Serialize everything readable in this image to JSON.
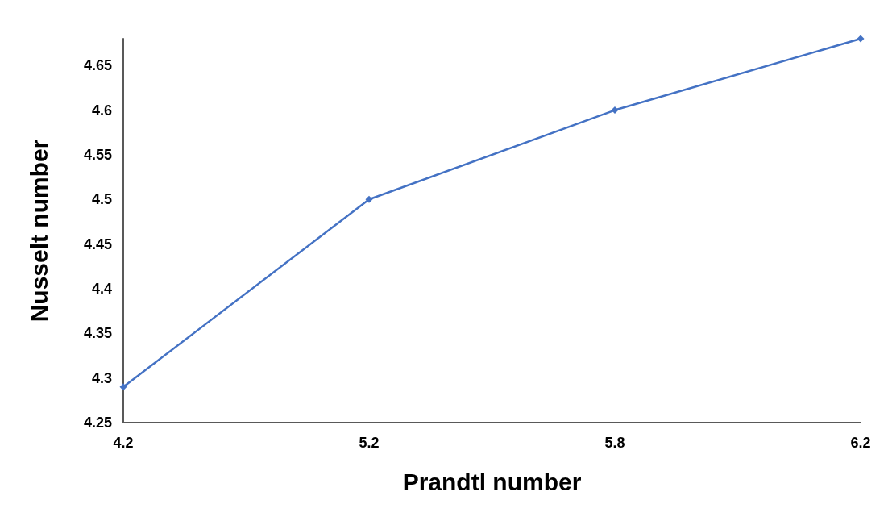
{
  "chart_data": {
    "type": "line",
    "xlabel": "Prandtl number",
    "ylabel": "Nusselt number",
    "categories": [
      "4.2",
      "5.2",
      "5.8",
      "6.2"
    ],
    "series": [
      {
        "color": "#4472c4",
        "values": [
          4.29,
          4.5,
          4.6,
          4.68
        ]
      }
    ],
    "ylim": [
      4.25,
      4.68
    ],
    "yticks": [
      4.25,
      4.3,
      4.35,
      4.4,
      4.45,
      4.5,
      4.55,
      4.6,
      4.65
    ],
    "grid": false,
    "marker": "diamond",
    "line_style": "solid"
  }
}
